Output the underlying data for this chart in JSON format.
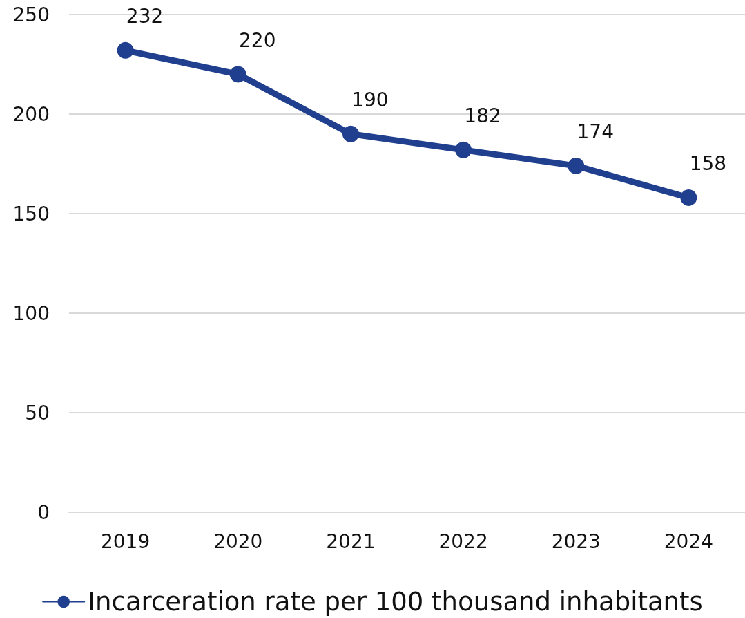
{
  "chart_data": {
    "type": "line",
    "categories": [
      "2019",
      "2020",
      "2021",
      "2022",
      "2023",
      "2024"
    ],
    "series": [
      {
        "name": "Incarceration rate per 100 thousand inhabitants",
        "color": "#203f8e",
        "values": [
          232,
          220,
          190,
          182,
          174,
          158
        ]
      }
    ],
    "ylim": [
      0,
      250
    ],
    "yticks": [
      0,
      50,
      100,
      150,
      200,
      250
    ],
    "grid": "y",
    "legend": "bottom",
    "marker": "circle",
    "line_style": "solid",
    "data_labels": true
  }
}
